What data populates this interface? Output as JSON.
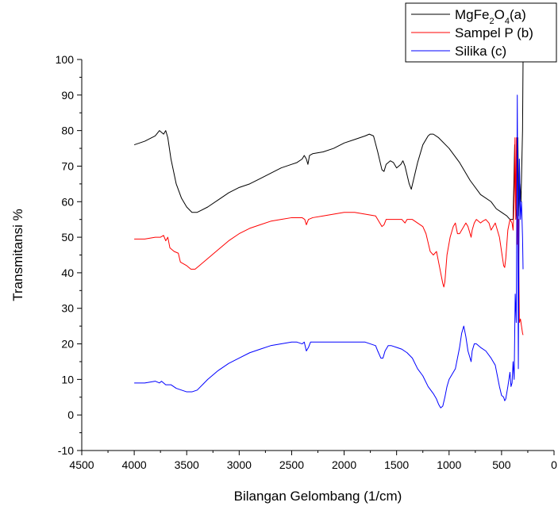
{
  "chart_data": {
    "type": "line",
    "xlabel": "Bilangan Gelombang (1/cm)",
    "ylabel": "Transmitansi %",
    "xlim": [
      4500,
      0
    ],
    "ylim": [
      -10,
      100
    ],
    "x_reversed": true,
    "x_ticks": [
      4500,
      4000,
      3500,
      3000,
      2500,
      2000,
      1500,
      1000,
      500,
      0
    ],
    "y_ticks": [
      -10,
      0,
      10,
      20,
      30,
      40,
      50,
      60,
      70,
      80,
      90,
      100
    ],
    "grid": false,
    "legend_position": "top-right",
    "series": [
      {
        "name": "MgFe2O4(a)",
        "legend_parts": [
          {
            "t": "MgFe"
          },
          {
            "t": "2",
            "sub": true
          },
          {
            "t": "O"
          },
          {
            "t": "4",
            "sub": true
          },
          {
            "t": "(a)"
          }
        ],
        "color": "#000000",
        "points": [
          [
            4000,
            76
          ],
          [
            3900,
            77
          ],
          [
            3800,
            78.5
          ],
          [
            3760,
            80
          ],
          [
            3720,
            79
          ],
          [
            3700,
            80
          ],
          [
            3680,
            78
          ],
          [
            3650,
            72
          ],
          [
            3600,
            65
          ],
          [
            3550,
            61
          ],
          [
            3500,
            58.5
          ],
          [
            3450,
            57
          ],
          [
            3400,
            57
          ],
          [
            3300,
            58.5
          ],
          [
            3200,
            60.5
          ],
          [
            3100,
            62.5
          ],
          [
            3000,
            64
          ],
          [
            2900,
            65
          ],
          [
            2800,
            66.5
          ],
          [
            2700,
            68
          ],
          [
            2600,
            69.5
          ],
          [
            2500,
            70.5
          ],
          [
            2450,
            71
          ],
          [
            2400,
            72
          ],
          [
            2380,
            73
          ],
          [
            2360,
            72
          ],
          [
            2345,
            70.5
          ],
          [
            2330,
            73
          ],
          [
            2300,
            73.5
          ],
          [
            2200,
            74
          ],
          [
            2100,
            75
          ],
          [
            2000,
            76.5
          ],
          [
            1900,
            77.5
          ],
          [
            1800,
            78.5
          ],
          [
            1760,
            79
          ],
          [
            1720,
            78.5
          ],
          [
            1680,
            74
          ],
          [
            1640,
            69
          ],
          [
            1620,
            68.5
          ],
          [
            1600,
            70.5
          ],
          [
            1560,
            71.5
          ],
          [
            1530,
            71
          ],
          [
            1500,
            69.5
          ],
          [
            1460,
            70.5
          ],
          [
            1440,
            71.5
          ],
          [
            1420,
            70
          ],
          [
            1380,
            65
          ],
          [
            1360,
            63.5
          ],
          [
            1340,
            66
          ],
          [
            1300,
            71
          ],
          [
            1250,
            76
          ],
          [
            1200,
            78.5
          ],
          [
            1180,
            79
          ],
          [
            1150,
            79
          ],
          [
            1100,
            78
          ],
          [
            1000,
            75
          ],
          [
            900,
            71
          ],
          [
            800,
            66
          ],
          [
            700,
            62
          ],
          [
            600,
            60
          ],
          [
            550,
            58
          ],
          [
            500,
            57
          ],
          [
            450,
            56
          ],
          [
            420,
            55
          ],
          [
            390,
            55
          ],
          [
            375,
            76
          ],
          [
            365,
            58
          ],
          [
            355,
            55
          ],
          [
            345,
            78
          ],
          [
            335,
            56
          ],
          [
            325,
            65
          ],
          [
            315,
            60
          ],
          [
            300,
            80
          ],
          [
            295,
            100
          ]
        ]
      },
      {
        "name": "Sampel P (b)",
        "color": "#ff0000",
        "points": [
          [
            4000,
            49.5
          ],
          [
            3900,
            49.5
          ],
          [
            3800,
            50
          ],
          [
            3750,
            50
          ],
          [
            3720,
            50.5
          ],
          [
            3700,
            49
          ],
          [
            3680,
            50
          ],
          [
            3660,
            47
          ],
          [
            3620,
            46
          ],
          [
            3580,
            45.5
          ],
          [
            3560,
            43
          ],
          [
            3530,
            42.5
          ],
          [
            3500,
            42
          ],
          [
            3460,
            41
          ],
          [
            3420,
            41
          ],
          [
            3380,
            42
          ],
          [
            3300,
            44
          ],
          [
            3200,
            46.5
          ],
          [
            3100,
            49
          ],
          [
            3000,
            51
          ],
          [
            2900,
            52.5
          ],
          [
            2800,
            53.5
          ],
          [
            2700,
            54.5
          ],
          [
            2600,
            55
          ],
          [
            2500,
            55.5
          ],
          [
            2450,
            55.5
          ],
          [
            2400,
            55.5
          ],
          [
            2375,
            55
          ],
          [
            2360,
            53.5
          ],
          [
            2340,
            55
          ],
          [
            2300,
            55.5
          ],
          [
            2200,
            56
          ],
          [
            2100,
            56.5
          ],
          [
            2000,
            57
          ],
          [
            1900,
            57
          ],
          [
            1800,
            56.5
          ],
          [
            1700,
            56
          ],
          [
            1660,
            54
          ],
          [
            1640,
            53
          ],
          [
            1620,
            53.5
          ],
          [
            1600,
            55
          ],
          [
            1550,
            55
          ],
          [
            1500,
            55
          ],
          [
            1450,
            55
          ],
          [
            1420,
            54
          ],
          [
            1400,
            55
          ],
          [
            1350,
            55
          ],
          [
            1300,
            54
          ],
          [
            1250,
            53
          ],
          [
            1220,
            51
          ],
          [
            1200,
            48.5
          ],
          [
            1180,
            46
          ],
          [
            1150,
            45
          ],
          [
            1120,
            46
          ],
          [
            1100,
            43
          ],
          [
            1080,
            40
          ],
          [
            1060,
            37
          ],
          [
            1050,
            36
          ],
          [
            1040,
            37.5
          ],
          [
            1020,
            45
          ],
          [
            990,
            50
          ],
          [
            960,
            53
          ],
          [
            940,
            54
          ],
          [
            920,
            51
          ],
          [
            900,
            51
          ],
          [
            880,
            52
          ],
          [
            860,
            53
          ],
          [
            840,
            54
          ],
          [
            820,
            53
          ],
          [
            800,
            51
          ],
          [
            790,
            50
          ],
          [
            780,
            52
          ],
          [
            760,
            54
          ],
          [
            740,
            55
          ],
          [
            700,
            54
          ],
          [
            680,
            54.5
          ],
          [
            650,
            55
          ],
          [
            620,
            54
          ],
          [
            600,
            52
          ],
          [
            580,
            53
          ],
          [
            560,
            54
          ],
          [
            540,
            52
          ],
          [
            520,
            50
          ],
          [
            500,
            46
          ],
          [
            480,
            42
          ],
          [
            470,
            41.5
          ],
          [
            460,
            44
          ],
          [
            440,
            52
          ],
          [
            420,
            55
          ],
          [
            400,
            54
          ],
          [
            390,
            52
          ],
          [
            380,
            60
          ],
          [
            372,
            78
          ],
          [
            365,
            55
          ],
          [
            358,
            78
          ],
          [
            350,
            48
          ],
          [
            340,
            55
          ],
          [
            330,
            26
          ],
          [
            320,
            27
          ],
          [
            310,
            25
          ],
          [
            300,
            23
          ],
          [
            295,
            22.5
          ]
        ]
      },
      {
        "name": "Silika (c)",
        "color": "#0000ff",
        "points": [
          [
            4000,
            9
          ],
          [
            3900,
            9
          ],
          [
            3800,
            9.5
          ],
          [
            3760,
            9
          ],
          [
            3740,
            9.5
          ],
          [
            3700,
            8.5
          ],
          [
            3650,
            8.5
          ],
          [
            3600,
            7.5
          ],
          [
            3550,
            7
          ],
          [
            3500,
            6.5
          ],
          [
            3450,
            6.5
          ],
          [
            3400,
            7
          ],
          [
            3350,
            8.5
          ],
          [
            3300,
            10
          ],
          [
            3200,
            12.5
          ],
          [
            3100,
            14.5
          ],
          [
            3000,
            16
          ],
          [
            2900,
            17.5
          ],
          [
            2800,
            18.5
          ],
          [
            2700,
            19.5
          ],
          [
            2600,
            20
          ],
          [
            2500,
            20.5
          ],
          [
            2450,
            20.5
          ],
          [
            2400,
            20
          ],
          [
            2380,
            20.5
          ],
          [
            2360,
            18
          ],
          [
            2340,
            19
          ],
          [
            2320,
            20.5
          ],
          [
            2300,
            20.5
          ],
          [
            2200,
            20.5
          ],
          [
            2100,
            20.5
          ],
          [
            2000,
            20.5
          ],
          [
            1900,
            20.5
          ],
          [
            1800,
            20.5
          ],
          [
            1700,
            19.5
          ],
          [
            1680,
            18
          ],
          [
            1650,
            16
          ],
          [
            1630,
            16
          ],
          [
            1610,
            18
          ],
          [
            1580,
            19.5
          ],
          [
            1550,
            19.5
          ],
          [
            1500,
            19
          ],
          [
            1450,
            18.5
          ],
          [
            1400,
            17.5
          ],
          [
            1350,
            16
          ],
          [
            1300,
            13
          ],
          [
            1250,
            11
          ],
          [
            1200,
            8
          ],
          [
            1150,
            6
          ],
          [
            1120,
            4.5
          ],
          [
            1100,
            3
          ],
          [
            1080,
            2
          ],
          [
            1060,
            2.5
          ],
          [
            1040,
            5
          ],
          [
            1020,
            8
          ],
          [
            1000,
            10
          ],
          [
            980,
            11
          ],
          [
            960,
            12
          ],
          [
            940,
            13
          ],
          [
            900,
            19
          ],
          [
            880,
            23
          ],
          [
            860,
            25
          ],
          [
            840,
            22
          ],
          [
            820,
            18
          ],
          [
            800,
            16
          ],
          [
            790,
            15
          ],
          [
            780,
            18
          ],
          [
            760,
            20
          ],
          [
            740,
            20
          ],
          [
            700,
            19
          ],
          [
            650,
            18
          ],
          [
            600,
            16
          ],
          [
            580,
            15
          ],
          [
            560,
            14
          ],
          [
            540,
            11
          ],
          [
            520,
            8
          ],
          [
            500,
            5.5
          ],
          [
            480,
            5
          ],
          [
            470,
            4
          ],
          [
            460,
            4.5
          ],
          [
            440,
            8
          ],
          [
            420,
            12
          ],
          [
            410,
            8
          ],
          [
            400,
            9
          ],
          [
            390,
            15
          ],
          [
            380,
            10
          ],
          [
            370,
            34
          ],
          [
            360,
            26
          ],
          [
            350,
            90
          ],
          [
            340,
            13
          ],
          [
            330,
            72
          ],
          [
            320,
            55
          ],
          [
            310,
            60
          ],
          [
            300,
            50
          ],
          [
            295,
            41
          ]
        ]
      }
    ]
  }
}
